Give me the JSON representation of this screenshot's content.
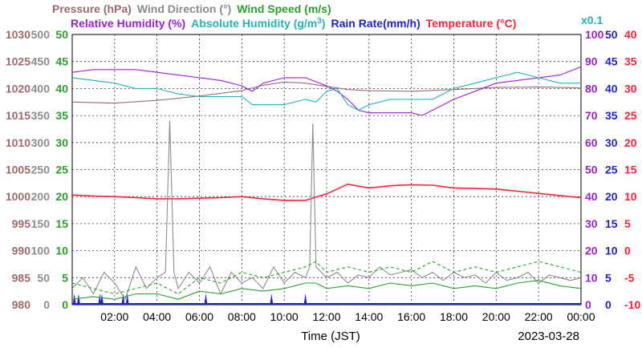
{
  "chart_data": {
    "type": "line",
    "title_row1": [
      {
        "label": "Pressure (hPa)",
        "color": "#9b6b6b"
      },
      {
        "label": "Wind Direction (°)",
        "color": "#8c8c8c"
      },
      {
        "label": "Wind Speed (m/s)",
        "color": "#2aa02a"
      }
    ],
    "title_row2": [
      {
        "label": "Relative Humidity (%)",
        "color": "#9c1fd6"
      },
      {
        "label": "Absolute Humidity (g/m",
        "sup": "3",
        "tail": ")",
        "color": "#1fb5b5"
      },
      {
        "label": "Rain Rate(mm/h)",
        "color": "#1f1fd6"
      },
      {
        "label": "Temperature (°C)",
        "color": "#ff1f3a"
      }
    ],
    "corner_label": "x0.1",
    "xlabel": "Time (JST)",
    "date": "2023-03-28",
    "x_ticks": [
      "02:00",
      "04:00",
      "06:00",
      "08:00",
      "10:00",
      "12:00",
      "14:00",
      "16:00",
      "18:00",
      "20:00",
      "22:00",
      "00:00"
    ],
    "axes": {
      "pressure": {
        "color": "#9b6b6b",
        "ticks": [
          "980",
          "985",
          "990",
          "995",
          "1000",
          "1005",
          "1010",
          "1015",
          "1020",
          "1025",
          "1030"
        ],
        "ylim": [
          980,
          1030
        ]
      },
      "wind_direction": {
        "color": "#8c8c8c",
        "ticks": [
          "0",
          "50",
          "100",
          "150",
          "200",
          "250",
          "300",
          "350",
          "400",
          "450",
          "500"
        ],
        "ylim": [
          0,
          500
        ]
      },
      "wind_speed": {
        "color": "#2aa02a",
        "ticks": [
          "0",
          "5",
          "10",
          "15",
          "20",
          "25",
          "30",
          "35",
          "40",
          "45",
          "50"
        ],
        "ylim": [
          0,
          50
        ]
      },
      "relative_humidity": {
        "color": "#9c1fd6",
        "ticks": [
          "0",
          "10",
          "20",
          "30",
          "40",
          "50",
          "60",
          "70",
          "80",
          "90",
          "100"
        ],
        "ylim": [
          0,
          100
        ]
      },
      "rain_rate": {
        "color": "#1f1fd6",
        "ticks": [
          "0",
          "5",
          "10",
          "15",
          "20",
          "25",
          "30",
          "35",
          "40",
          "45",
          "50"
        ],
        "ylim": [
          0,
          50
        ]
      },
      "temperature": {
        "color": "#ff1f3a",
        "ticks": [
          "-10",
          "-5",
          "0",
          "5",
          "10",
          "15",
          "20",
          "25",
          "30",
          "35",
          "40"
        ],
        "ylim": [
          -10,
          40
        ]
      }
    },
    "x_range_hours": [
      0,
      24
    ],
    "grid": true,
    "series": [
      {
        "name": "Pressure (hPa)",
        "color": "#9b6b6b",
        "axis": "pressure",
        "x": [
          0,
          2,
          4,
          6,
          8,
          9,
          10,
          11,
          12,
          13,
          14,
          16,
          18,
          20,
          22,
          24
        ],
        "y": [
          1017.5,
          1017.3,
          1017.8,
          1018.6,
          1019.6,
          1020.6,
          1021.2,
          1021.0,
          1020.4,
          1019.8,
          1019.6,
          1019.5,
          1019.8,
          1020.2,
          1020.3,
          1020.1
        ]
      },
      {
        "name": "Relative Humidity (%)",
        "color": "#9c1fd6",
        "axis": "relative_humidity",
        "x": [
          0,
          1,
          2,
          3,
          4,
          5,
          6,
          7,
          8,
          8.5,
          9,
          10,
          11,
          12,
          12.5,
          13,
          13.5,
          14,
          15,
          16,
          16.5,
          17,
          18,
          19,
          20,
          21,
          22,
          23,
          24
        ],
        "y": [
          86,
          87,
          87,
          87,
          86,
          85,
          84,
          83,
          81,
          79,
          82,
          84,
          84,
          81,
          79,
          76,
          72,
          71,
          71,
          71,
          70,
          72,
          76,
          79,
          82,
          83,
          84,
          85,
          88
        ]
      },
      {
        "name": "Absolute Humidity (g/m3)",
        "color": "#1fb5b5",
        "axis": "wind_speed",
        "x": [
          0,
          1,
          2,
          3,
          4,
          5,
          6,
          7,
          8,
          8.5,
          9,
          10,
          11,
          11.5,
          12,
          12.5,
          13,
          13.5,
          14,
          15,
          16,
          17,
          18,
          19,
          20,
          21,
          22,
          23,
          24
        ],
        "y": [
          42,
          41.5,
          41,
          40,
          40,
          39,
          38.5,
          38.5,
          38.5,
          37,
          37,
          37,
          38,
          37.5,
          39.5,
          40,
          37,
          36,
          37,
          38,
          38,
          38,
          40,
          41,
          42,
          43,
          42,
          41,
          41
        ]
      },
      {
        "name": "Temperature (°C)",
        "color": "#ff1f3a",
        "axis": "temperature",
        "x": [
          0,
          1,
          2,
          3,
          4,
          5,
          6,
          7,
          8,
          9,
          10,
          11,
          12,
          13,
          14,
          15,
          16,
          17,
          18,
          19,
          20,
          21,
          22,
          23,
          24
        ],
        "y": [
          10.3,
          10.1,
          10.0,
          9.8,
          9.6,
          9.6,
          9.7,
          9.8,
          10.0,
          9.6,
          9.3,
          9.3,
          10.5,
          12.3,
          11.6,
          12.0,
          12.2,
          12.1,
          11.6,
          11.5,
          11.4,
          11.0,
          10.6,
          10.2,
          9.8
        ]
      },
      {
        "name": "Wind Direction (°)",
        "color": "#8c8c8c",
        "axis": "wind_direction",
        "x": [
          0,
          0.5,
          1,
          1.5,
          2,
          2.5,
          3,
          3.5,
          4,
          4.4,
          4.6,
          4.8,
          5,
          5.5,
          6,
          6.5,
          7,
          7.5,
          8,
          8.5,
          9,
          9.5,
          10,
          10.5,
          11,
          11.2,
          11.35,
          11.5,
          12,
          12.5,
          13,
          13.5,
          14,
          14.5,
          15,
          15.5,
          16,
          16.5,
          17,
          17.5,
          18,
          18.5,
          19,
          19.5,
          20,
          20.5,
          21,
          21.5,
          22,
          22.5,
          23,
          23.5,
          24
        ],
        "y": [
          30,
          50,
          20,
          60,
          40,
          10,
          70,
          30,
          50,
          60,
          340,
          60,
          30,
          60,
          40,
          70,
          20,
          60,
          40,
          50,
          30,
          70,
          40,
          60,
          50,
          70,
          335,
          70,
          50,
          60,
          40,
          55,
          50,
          70,
          55,
          60,
          65,
          50,
          60,
          45,
          60,
          50,
          55,
          40,
          60,
          45,
          50,
          60,
          40,
          55,
          50,
          45,
          50
        ]
      },
      {
        "name": "Wind Speed (m/s)",
        "color": "#2aa02a",
        "axis": "wind_speed",
        "x": [
          0,
          1,
          2,
          3,
          4,
          5,
          6,
          7,
          8,
          9,
          10,
          11,
          11.5,
          12,
          13,
          14,
          15,
          16,
          17,
          18,
          19,
          20,
          21,
          22,
          23,
          24
        ],
        "y": [
          4,
          3,
          2,
          3,
          4,
          2,
          5,
          4,
          6,
          5,
          6,
          7,
          8,
          6,
          7,
          6,
          7,
          6,
          8,
          6,
          7,
          6,
          7,
          8,
          7,
          6
        ]
      },
      {
        "name": "Wind Speed max (m/s)",
        "color": "#2aa02a",
        "axis": "wind_speed",
        "x": [
          0,
          1,
          2,
          3,
          4,
          5,
          6,
          7,
          8,
          9,
          10,
          11,
          11.5,
          12,
          13,
          14,
          15,
          16,
          17,
          18,
          19,
          20,
          21,
          22,
          23,
          24
        ],
        "y": [
          1,
          1.5,
          1,
          2,
          2,
          1,
          2.5,
          2,
          3,
          2.5,
          3,
          4,
          4,
          3,
          3.5,
          3,
          4,
          3.5,
          4,
          3,
          3.5,
          3,
          4,
          4.5,
          3.5,
          3
        ]
      }
    ],
    "rain_events_hours": [
      0.1,
      0.3,
      1.3,
      1.4,
      2.4,
      2.6,
      6.3,
      9.4,
      11.0
    ]
  }
}
